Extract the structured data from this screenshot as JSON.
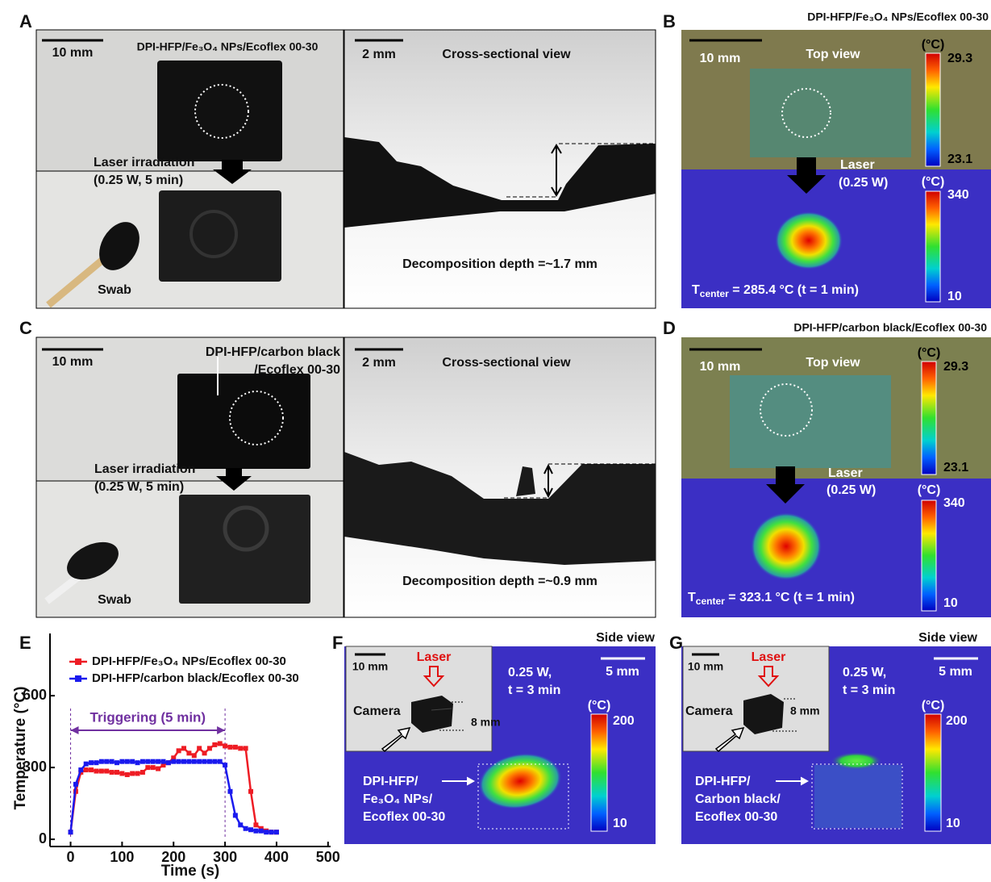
{
  "panels": {
    "a": {
      "label": "A",
      "scale_photo": "10 mm",
      "sample": "DPI-HFP/Fe₃O₄ NPs/Ecoflex 00-30",
      "laser": [
        "Laser irradiation",
        "(0.25 W, 5 min)"
      ],
      "swab": "Swab",
      "scale_cross": "2 mm",
      "cross_title": "Cross-sectional view",
      "depth": "Decomposition depth =~1.7 mm"
    },
    "b": {
      "label": "B",
      "title": "DPI-HFP/Fe₃O₄ NPs/Ecoflex 00-30",
      "scale": "10 mm",
      "view": "Top view",
      "laser": [
        "Laser",
        "(0.25 W)"
      ],
      "unit_top": "(°C)",
      "max_top": "29.3",
      "min_top": "23.1",
      "unit_bottom": "(°C)",
      "max_bottom": "340",
      "min_bottom": "10",
      "t_symbol": "T",
      "t_sub": "center",
      "t_text": " = 285.4 °C (t = 1 min)"
    },
    "c": {
      "label": "C",
      "scale_photo": "10 mm",
      "sample": [
        "DPI-HFP/carbon black",
        "/Ecoflex 00-30"
      ],
      "laser": [
        "Laser irradiation",
        "(0.25 W, 5 min)"
      ],
      "swab": "Swab",
      "scale_cross": "2 mm",
      "cross_title": "Cross-sectional view",
      "depth": "Decomposition depth =~0.9 mm"
    },
    "d": {
      "label": "D",
      "title": "DPI-HFP/carbon black/Ecoflex 00-30",
      "scale": "10 mm",
      "view": "Top view",
      "laser": [
        "Laser",
        "(0.25 W)"
      ],
      "unit_top": "(°C)",
      "max_top": "29.3",
      "min_top": "23.1",
      "unit_bottom": "(°C)",
      "max_bottom": "340",
      "min_bottom": "10",
      "t_symbol": "T",
      "t_sub": "center",
      "t_text": " = 323.1 °C (t = 1 min)"
    },
    "e": {
      "label": "E"
    },
    "f": {
      "label": "F",
      "view": "Side view",
      "scale": "5 mm",
      "power": "0.25 W,",
      "time": "t = 3 min",
      "unit": "(°C)",
      "max": "200",
      "min": "10",
      "inset_scale": "10 mm",
      "laser": "Laser",
      "camera": "Camera",
      "height": "8 mm",
      "sample": [
        "DPI-HFP/",
        "Fe₃O₄ NPs/",
        "Ecoflex 00-30"
      ]
    },
    "g": {
      "label": "G",
      "view": "Side view",
      "scale": "5 mm",
      "power": "0.25 W,",
      "time": "t = 3 min",
      "unit": "(°C)",
      "max": "200",
      "min": "10",
      "inset_scale": "10 mm",
      "laser": "Laser",
      "camera": "Camera",
      "height": "8 mm",
      "sample": [
        "DPI-HFP/",
        "Carbon black/",
        "Ecoflex 00-30"
      ]
    }
  },
  "chart_data": {
    "type": "line",
    "x_label": "Time (s)",
    "y_label": "Temperature (°C)",
    "annotation": "Triggering (5 min)",
    "xlim": [
      -40,
      505
    ],
    "ylim": [
      -30,
      860
    ],
    "xticks": [
      0,
      100,
      200,
      300,
      400,
      500
    ],
    "yticks": [
      0,
      300,
      600
    ],
    "legend": "upper left",
    "series": [
      {
        "name": "DPI-HFP/Fe₃O₄ NPs/Ecoflex 00-30",
        "color": "#ee1c24",
        "x": [
          0,
          10,
          20,
          30,
          40,
          50,
          60,
          70,
          80,
          90,
          100,
          110,
          120,
          130,
          140,
          150,
          160,
          170,
          180,
          190,
          200,
          210,
          220,
          230,
          240,
          250,
          260,
          270,
          280,
          290,
          300,
          310,
          320,
          330,
          340,
          350,
          360,
          370,
          380,
          390,
          400
        ],
        "values": [
          30,
          200,
          280,
          290,
          290,
          285,
          285,
          285,
          280,
          280,
          275,
          270,
          275,
          275,
          280,
          300,
          300,
          295,
          310,
          320,
          340,
          370,
          380,
          360,
          350,
          380,
          360,
          380,
          395,
          400,
          390,
          385,
          385,
          380,
          380,
          200,
          60,
          45,
          35,
          30,
          30
        ]
      },
      {
        "name": "DPI-HFP/carbon black/Ecoflex 00-30",
        "color": "#1a1aee",
        "x": [
          0,
          10,
          20,
          30,
          40,
          50,
          60,
          70,
          80,
          90,
          100,
          110,
          120,
          130,
          140,
          150,
          160,
          170,
          180,
          190,
          200,
          210,
          220,
          230,
          240,
          250,
          260,
          270,
          280,
          290,
          300,
          310,
          320,
          330,
          340,
          350,
          360,
          370,
          380,
          390,
          400
        ],
        "values": [
          30,
          230,
          290,
          315,
          320,
          320,
          325,
          325,
          325,
          320,
          325,
          325,
          325,
          320,
          325,
          325,
          325,
          325,
          325,
          320,
          325,
          325,
          325,
          325,
          325,
          325,
          325,
          325,
          325,
          325,
          310,
          200,
          100,
          60,
          45,
          40,
          35,
          35,
          30,
          30,
          30
        ]
      }
    ]
  }
}
